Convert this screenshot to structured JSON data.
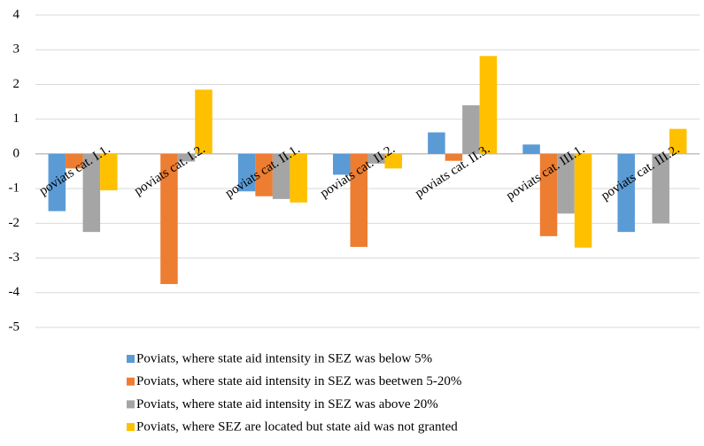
{
  "chart_data": {
    "type": "bar",
    "categories": [
      "poviats cat. I.1.",
      "poviats cat. I.2.",
      "poviats cat. II.1.",
      "poviats cat. II.2.",
      "poviats cat. II.3.",
      "poviats cat. III.1.",
      "poviats cat. III.2."
    ],
    "series": [
      {
        "name": "Poviats, where state aid intensity in SEZ was below 5%",
        "color": "#5b9bd5",
        "values": [
          -1.65,
          0,
          -1.08,
          -0.6,
          0.62,
          0.27,
          -2.25
        ]
      },
      {
        "name": "Poviats, where state aid intensity in SEZ was beetwen 5-20%",
        "color": "#ed7d31",
        "values": [
          -0.42,
          -3.75,
          -1.22,
          -2.68,
          -0.2,
          -2.37,
          0
        ]
      },
      {
        "name": "Poviats, where state aid intensity in SEZ was above 20%",
        "color": "#a5a5a5",
        "values": [
          -2.25,
          -0.22,
          -1.3,
          -0.28,
          1.4,
          -1.72,
          -2.0
        ]
      },
      {
        "name": "Poviats, where SEZ are located but state aid was not granted",
        "color": "#ffc000",
        "values": [
          -1.05,
          1.85,
          -1.4,
          -0.42,
          2.82,
          -2.7,
          0.72
        ]
      }
    ],
    "ylim": [
      -5,
      4
    ],
    "yticks": [
      -5,
      -4,
      -3,
      -2,
      -1,
      0,
      1,
      2,
      3,
      4
    ],
    "grid": true,
    "legend": "bottom"
  }
}
